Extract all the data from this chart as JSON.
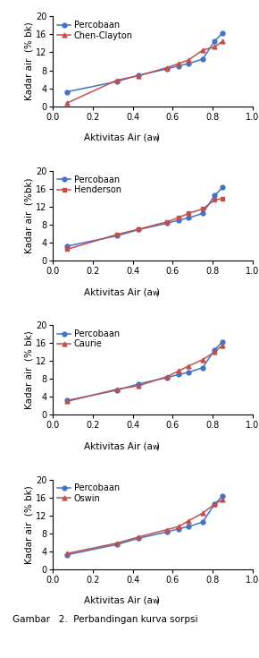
{
  "percobaan_x": [
    0.07,
    0.32,
    0.43,
    0.57,
    0.63,
    0.68,
    0.75,
    0.81,
    0.85
  ],
  "percobaan_y": [
    3.2,
    5.5,
    6.9,
    8.3,
    9.0,
    9.5,
    10.5,
    14.5,
    16.3
  ],
  "chen_clayton_x": [
    0.07,
    0.32,
    0.43,
    0.57,
    0.63,
    0.68,
    0.75,
    0.81,
    0.85
  ],
  "chen_clayton_y": [
    0.7,
    5.8,
    6.8,
    8.6,
    9.5,
    10.3,
    12.5,
    13.2,
    14.5
  ],
  "henderson_x": [
    0.07,
    0.32,
    0.43,
    0.57,
    0.63,
    0.68,
    0.75,
    0.81,
    0.85
  ],
  "henderson_y": [
    2.5,
    5.8,
    7.0,
    8.6,
    9.6,
    10.5,
    11.5,
    13.5,
    13.8
  ],
  "caurie_x": [
    0.07,
    0.32,
    0.43,
    0.57,
    0.63,
    0.68,
    0.75,
    0.81,
    0.85
  ],
  "caurie_y": [
    3.0,
    5.7,
    6.5,
    8.5,
    9.8,
    10.9,
    12.3,
    14.0,
    15.5
  ],
  "oswin_x": [
    0.07,
    0.32,
    0.43,
    0.57,
    0.63,
    0.68,
    0.75,
    0.81,
    0.85
  ],
  "oswin_y": [
    3.5,
    5.8,
    7.2,
    8.8,
    9.5,
    10.8,
    12.5,
    14.5,
    15.5
  ],
  "color_percobaan": "#4472C4",
  "color_model": "#C0504D",
  "ylim": [
    0,
    20
  ],
  "yticks": [
    0,
    4,
    8,
    12,
    16,
    20
  ],
  "xlim": [
    0,
    1.0
  ],
  "xticks": [
    0,
    0.2,
    0.4,
    0.6,
    0.8,
    1.0
  ],
  "ylabel1": "Kadar air  (% bk)",
  "ylabel2": "Kadar air  (%bk)",
  "ylabel3": "Kadar air  (% bk)",
  "ylabel4": "Kadar air  (% bk)",
  "legend_labels": [
    [
      "Percobaan",
      "Chen-Clayton"
    ],
    [
      "Percobaan",
      "Henderson"
    ],
    [
      "Percobaan",
      "Caurie"
    ],
    [
      "Percobaan",
      "Oswin"
    ]
  ],
  "marker_model": [
    "^",
    "s",
    "^",
    "^"
  ],
  "fontsize_label": 7.5,
  "fontsize_tick": 7,
  "fontsize_legend": 7,
  "caption": "Gambar   2.  Perbandingan kurva sorpsi"
}
